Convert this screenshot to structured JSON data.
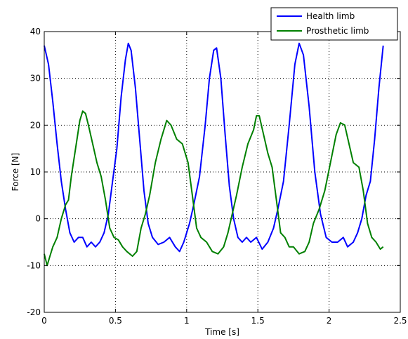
{
  "chart_data": {
    "type": "line",
    "title": "",
    "xlabel": "Time [s]",
    "ylabel": "Force [N]",
    "xlim": [
      0,
      2.5
    ],
    "ylim": [
      -20,
      40
    ],
    "xticks": [
      0,
      0.5,
      1,
      1.5,
      2,
      2.5
    ],
    "xtick_labels": [
      "0",
      "0.5",
      "1",
      "1.5",
      "2",
      "2.5"
    ],
    "yticks": [
      -20,
      -10,
      0,
      10,
      20,
      30,
      40
    ],
    "ytick_labels": [
      "-20",
      "-10",
      "0",
      "10",
      "20",
      "30",
      "40"
    ],
    "grid": true,
    "legend_position": "top-right",
    "series": [
      {
        "name": "Health limb",
        "color": "#0000ff",
        "points": [
          [
            0.0,
            37
          ],
          [
            0.03,
            33
          ],
          [
            0.06,
            25
          ],
          [
            0.09,
            16
          ],
          [
            0.12,
            8
          ],
          [
            0.15,
            2
          ],
          [
            0.18,
            -3
          ],
          [
            0.21,
            -5
          ],
          [
            0.24,
            -4
          ],
          [
            0.27,
            -4
          ],
          [
            0.3,
            -6
          ],
          [
            0.33,
            -5
          ],
          [
            0.36,
            -6
          ],
          [
            0.39,
            -5
          ],
          [
            0.42,
            -3
          ],
          [
            0.45,
            1
          ],
          [
            0.48,
            8
          ],
          [
            0.51,
            15
          ],
          [
            0.54,
            26
          ],
          [
            0.57,
            34
          ],
          [
            0.59,
            37.5
          ],
          [
            0.61,
            36
          ],
          [
            0.64,
            28
          ],
          [
            0.67,
            17
          ],
          [
            0.7,
            6
          ],
          [
            0.73,
            -1
          ],
          [
            0.76,
            -4
          ],
          [
            0.8,
            -5.5
          ],
          [
            0.84,
            -5
          ],
          [
            0.88,
            -4
          ],
          [
            0.92,
            -6
          ],
          [
            0.95,
            -7
          ],
          [
            0.98,
            -5
          ],
          [
            1.02,
            -1
          ],
          [
            1.05,
            3
          ],
          [
            1.09,
            9
          ],
          [
            1.13,
            20
          ],
          [
            1.16,
            30
          ],
          [
            1.19,
            36
          ],
          [
            1.21,
            36.5
          ],
          [
            1.24,
            30
          ],
          [
            1.27,
            18
          ],
          [
            1.3,
            7
          ],
          [
            1.33,
            0
          ],
          [
            1.36,
            -4
          ],
          [
            1.39,
            -5
          ],
          [
            1.42,
            -4
          ],
          [
            1.45,
            -5
          ],
          [
            1.49,
            -4
          ],
          [
            1.53,
            -6.5
          ],
          [
            1.57,
            -5
          ],
          [
            1.61,
            -2
          ],
          [
            1.64,
            2
          ],
          [
            1.68,
            8
          ],
          [
            1.72,
            20
          ],
          [
            1.76,
            33
          ],
          [
            1.79,
            37.5
          ],
          [
            1.82,
            35
          ],
          [
            1.86,
            24
          ],
          [
            1.9,
            10
          ],
          [
            1.94,
            1
          ],
          [
            1.98,
            -4
          ],
          [
            2.02,
            -5
          ],
          [
            2.06,
            -5
          ],
          [
            2.1,
            -4
          ],
          [
            2.13,
            -6
          ],
          [
            2.17,
            -5
          ],
          [
            2.2,
            -3
          ],
          [
            2.23,
            0
          ],
          [
            2.26,
            5
          ],
          [
            2.29,
            8
          ],
          [
            2.32,
            17
          ],
          [
            2.35,
            28
          ],
          [
            2.38,
            37
          ]
        ]
      },
      {
        "name": "Prosthetic limb",
        "color": "#008000",
        "points": [
          [
            0.0,
            -7.5
          ],
          [
            0.02,
            -10
          ],
          [
            0.04,
            -8
          ],
          [
            0.06,
            -6
          ],
          [
            0.09,
            -4
          ],
          [
            0.12,
            0
          ],
          [
            0.15,
            3
          ],
          [
            0.17,
            4
          ],
          [
            0.19,
            9
          ],
          [
            0.22,
            15
          ],
          [
            0.25,
            21
          ],
          [
            0.27,
            23
          ],
          [
            0.29,
            22.5
          ],
          [
            0.31,
            20
          ],
          [
            0.34,
            16
          ],
          [
            0.37,
            12
          ],
          [
            0.4,
            9
          ],
          [
            0.43,
            4
          ],
          [
            0.46,
            -2
          ],
          [
            0.49,
            -4
          ],
          [
            0.52,
            -4.5
          ],
          [
            0.55,
            -6
          ],
          [
            0.58,
            -7
          ],
          [
            0.62,
            -8
          ],
          [
            0.65,
            -7
          ],
          [
            0.68,
            -2
          ],
          [
            0.71,
            1
          ],
          [
            0.74,
            5
          ],
          [
            0.78,
            12
          ],
          [
            0.82,
            17
          ],
          [
            0.86,
            21
          ],
          [
            0.89,
            20
          ],
          [
            0.93,
            17
          ],
          [
            0.97,
            16
          ],
          [
            1.01,
            12
          ],
          [
            1.04,
            5
          ],
          [
            1.07,
            -2
          ],
          [
            1.1,
            -4
          ],
          [
            1.14,
            -5
          ],
          [
            1.18,
            -7
          ],
          [
            1.22,
            -7.5
          ],
          [
            1.26,
            -6
          ],
          [
            1.29,
            -3
          ],
          [
            1.32,
            1
          ],
          [
            1.35,
            5
          ],
          [
            1.39,
            11
          ],
          [
            1.43,
            16
          ],
          [
            1.47,
            19
          ],
          [
            1.49,
            22
          ],
          [
            1.51,
            22
          ],
          [
            1.54,
            18
          ],
          [
            1.57,
            14
          ],
          [
            1.6,
            11
          ],
          [
            1.63,
            4
          ],
          [
            1.66,
            -3
          ],
          [
            1.69,
            -4
          ],
          [
            1.72,
            -6
          ],
          [
            1.75,
            -6
          ],
          [
            1.79,
            -7.5
          ],
          [
            1.83,
            -7
          ],
          [
            1.86,
            -5
          ],
          [
            1.89,
            -1
          ],
          [
            1.93,
            2
          ],
          [
            1.97,
            6
          ],
          [
            2.01,
            12
          ],
          [
            2.05,
            18
          ],
          [
            2.08,
            20.5
          ],
          [
            2.11,
            20
          ],
          [
            2.14,
            16
          ],
          [
            2.17,
            12
          ],
          [
            2.21,
            11
          ],
          [
            2.24,
            6
          ],
          [
            2.27,
            -1
          ],
          [
            2.3,
            -4
          ],
          [
            2.33,
            -5
          ],
          [
            2.36,
            -6.5
          ],
          [
            2.38,
            -6
          ]
        ]
      }
    ]
  }
}
